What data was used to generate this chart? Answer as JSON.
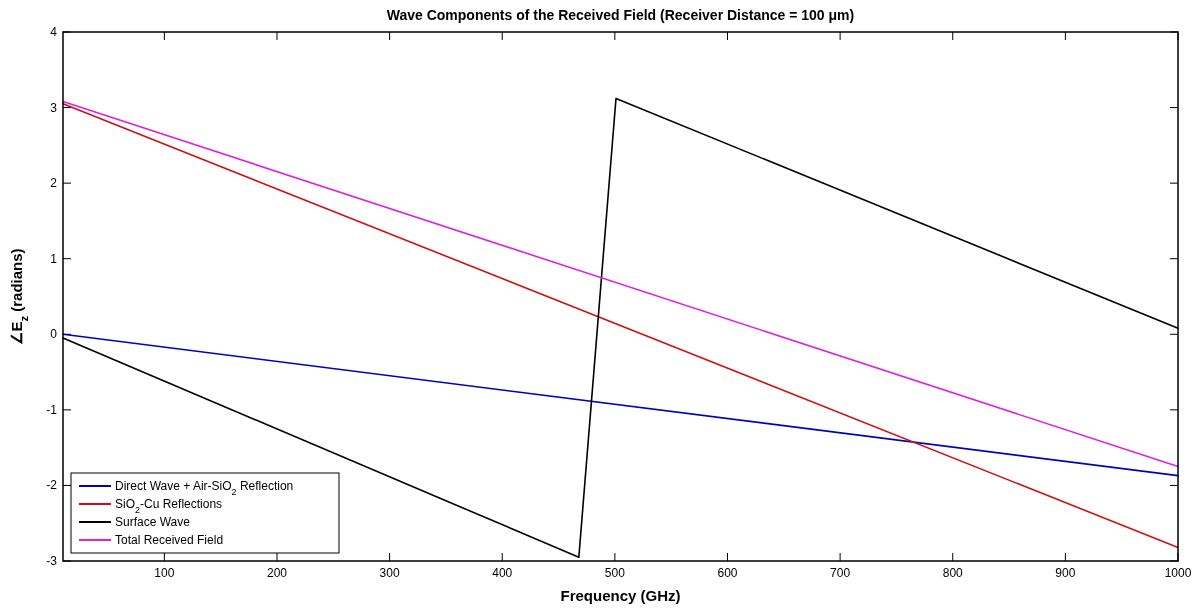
{
  "chart_data": {
    "type": "line",
    "title": "Wave Components of the Received Field (Receiver Distance = 100 μm)",
    "xlabel": "Frequency (GHz)",
    "ylabel": "∠E$_{z}$ (radians)",
    "xlim": [
      10,
      1000
    ],
    "xticks": [
      100,
      200,
      300,
      400,
      500,
      600,
      700,
      800,
      900,
      1000
    ],
    "ylim": [
      -3,
      4
    ],
    "yticks": [
      -3,
      -2,
      -1,
      0,
      1,
      2,
      3,
      4
    ],
    "grid": false,
    "legend": "bottom left",
    "line_style": "solid",
    "marker": "none",
    "series": [
      {
        "name": "Direct Wave + Air-SiO$_{2}$ Reflection",
        "color": "#0000c0",
        "x": [
          10,
          1000
        ],
        "values": [
          0,
          -1.87
        ]
      },
      {
        "name": "SiO$_{2}$-Cu Reflections",
        "color": "#d01010",
        "x": [
          10,
          1000
        ],
        "values": [
          3.05,
          -2.82
        ]
      },
      {
        "name": "Surface Wave",
        "color": "#000000",
        "x": [
          10,
          468,
          501,
          1000
        ],
        "values": [
          -0.05,
          -2.95,
          3.12,
          0.08
        ]
      },
      {
        "name": "Total Received Field",
        "color": "#e020e0",
        "x": [
          10,
          1000
        ],
        "values": [
          3.08,
          -1.75
        ]
      }
    ]
  }
}
